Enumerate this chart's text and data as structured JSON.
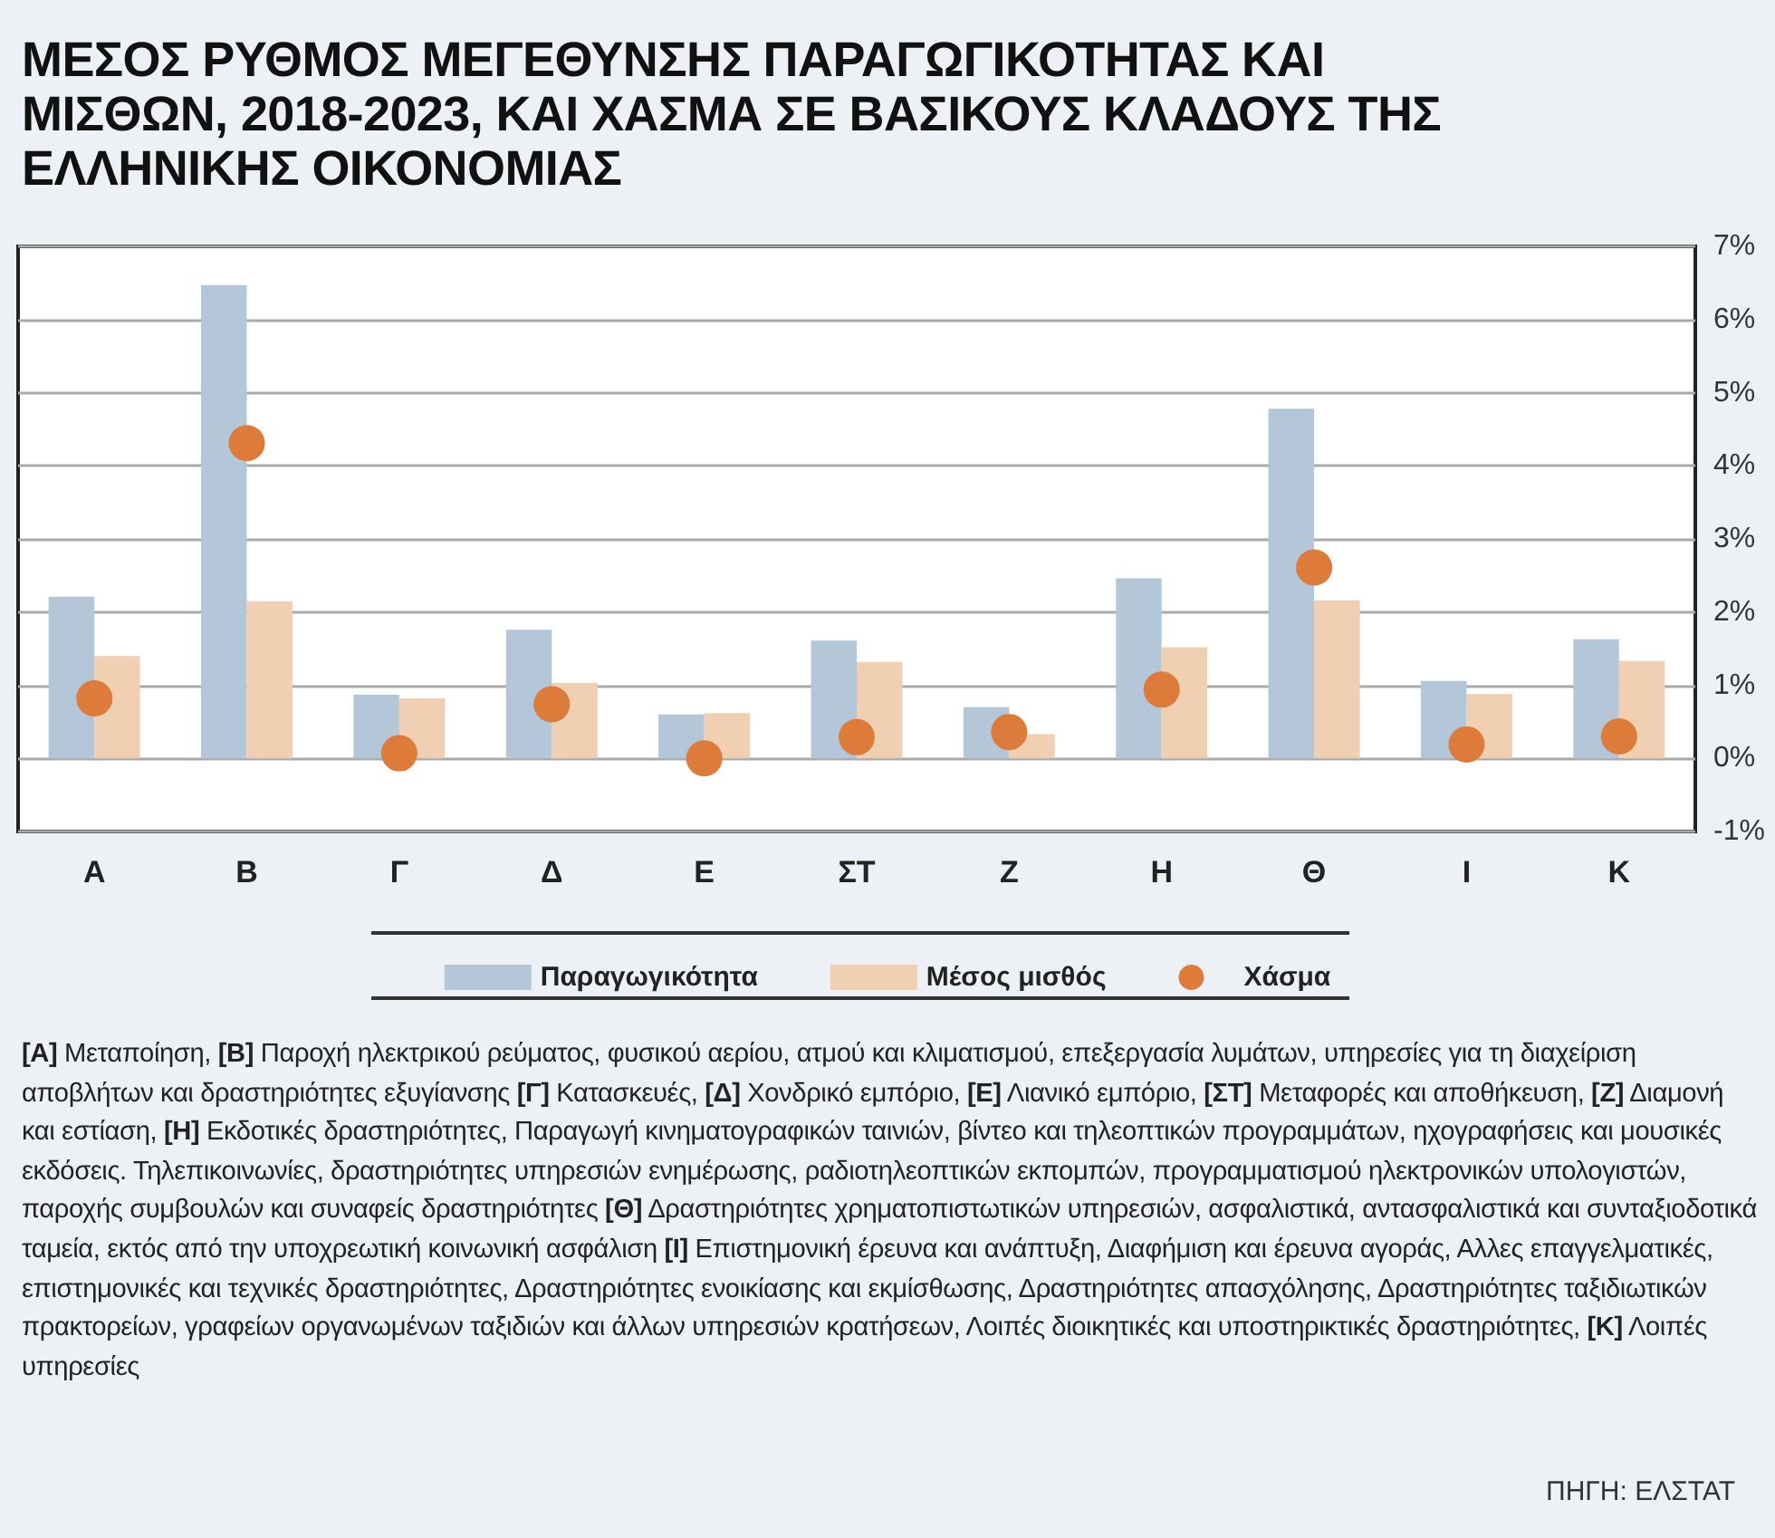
{
  "chart_data": {
    "type": "bar",
    "title": "ΜΕΣΟΣ ΡΥΘΜΟΣ ΜΕΓΕΘΥΝΣΗΣ ΠΑΡΑΓΩΓΙΚΟΤΗΤΑΣ ΚΑΙ ΜΙΣΘΩΝ, 2018-2023, ΚΑΙ ΧΑΣΜΑ ΣΕ ΒΑΣΙΚΟΥΣ ΚΛΑΔΟΥΣ ΤΗΣ ΕΛΛΗΝΙΚΗΣ ΟΙΚΟΝΟΜΙΑΣ",
    "categories": [
      "Α",
      "Β",
      "Γ",
      "Δ",
      "Ε",
      "ΣΤ",
      "Ζ",
      "Η",
      "Θ",
      "Ι",
      "Κ"
    ],
    "series": [
      {
        "name": "Παραγωγικότητα",
        "color": "#b3c7d8",
        "values": [
          2.21,
          6.47,
          0.87,
          1.76,
          0.6,
          1.61,
          0.7,
          2.46,
          4.78,
          1.06,
          1.63
        ]
      },
      {
        "name": "Μέσος μισθός",
        "color": "#f0cfb2",
        "values": [
          1.4,
          2.15,
          0.82,
          1.03,
          0.62,
          1.32,
          0.33,
          1.52,
          2.16,
          0.88,
          1.33
        ]
      },
      {
        "name": "Χάσμα",
        "type": "scatter",
        "color": "#dd7b3a",
        "values": [
          0.82,
          4.31,
          0.07,
          0.74,
          0.0,
          0.29,
          0.36,
          0.94,
          2.61,
          0.19,
          0.3
        ]
      }
    ],
    "ylim": [
      -1,
      7
    ],
    "yticks": [
      {
        "value": -1,
        "label": "-1%"
      },
      {
        "value": 0,
        "label": "0%"
      },
      {
        "value": 1,
        "label": "1%"
      },
      {
        "value": 2,
        "label": "2%"
      },
      {
        "value": 3,
        "label": "3%"
      },
      {
        "value": 4,
        "label": "4%"
      },
      {
        "value": 5,
        "label": "5%"
      },
      {
        "value": 6,
        "label": "6%"
      },
      {
        "value": 7,
        "label": "7%"
      }
    ],
    "grid": "y",
    "legend": "bottom",
    "marker": "circle",
    "annotations": [
      "[Α] Μεταποίηση, [Β] Παροχή ηλεκτρικού ρεύματος, φυσικού αερίου, ατμού και κλιματισμού, επεξεργασία λυμάτων, υπηρεσίες για τη διαχείριση αποβλήτων και δραστηριότητες εξυγίανσης [Γ] Κατασκευές, [Δ] Χονδρικό εμπόριο, [Ε] Λιανικό εμπόριο, [ΣΤ] Μεταφορές και αποθήκευση, [Ζ] Διαμονή και εστίαση, [Η] Εκδοτικές δραστηριότητες, Παραγωγή κινηματογραφικών ταινιών, βίντεο και τηλεοπτικών προγραμμάτων, ηχογραφήσεις και μουσικές εκδόσεις. Τηλεπικοινωνίες, δραστηριότητες υπηρεσιών ενημέρωσης, ραδιοτηλεοπτικών εκπομπών, προγραμματισμού ηλεκτρονικών υπολογιστών, παροχής συμβουλών και συναφείς δραστηριότητες [Θ] Δραστηριότητες χρηματοπιστωτικών υπηρεσιών, ασφαλιστικά, αντασφαλιστικά και συνταξιοδοτικά ταμεία, εκτός από την υποχρεωτική κοινωνική ασφάλιση [Ι] Επιστημονική έρευνα και ανάπτυξη, Διαφήμιση και έρευνα αγοράς, Αλλες επαγγελματικές, επιστημονικές και τεχνικές δραστηριότητες, Δραστηριότητες ενοικίασης και εκμίσθωσης, Δραστηριότητες απασχόλησης, Δραστηριότητες ταξιδιωτικών πρακτορείων, γραφείων οργανωμένων ταξιδιών και άλλων υπηρεσιών κρατήσεων, Λοιπές διοικητικές και υποστηρικτικές δραστηριότητες, [Κ] Λοιπές υπηρεσίες",
      "ΠΗΓΗ: ΕΛΣΤΑΤ"
    ]
  }
}
